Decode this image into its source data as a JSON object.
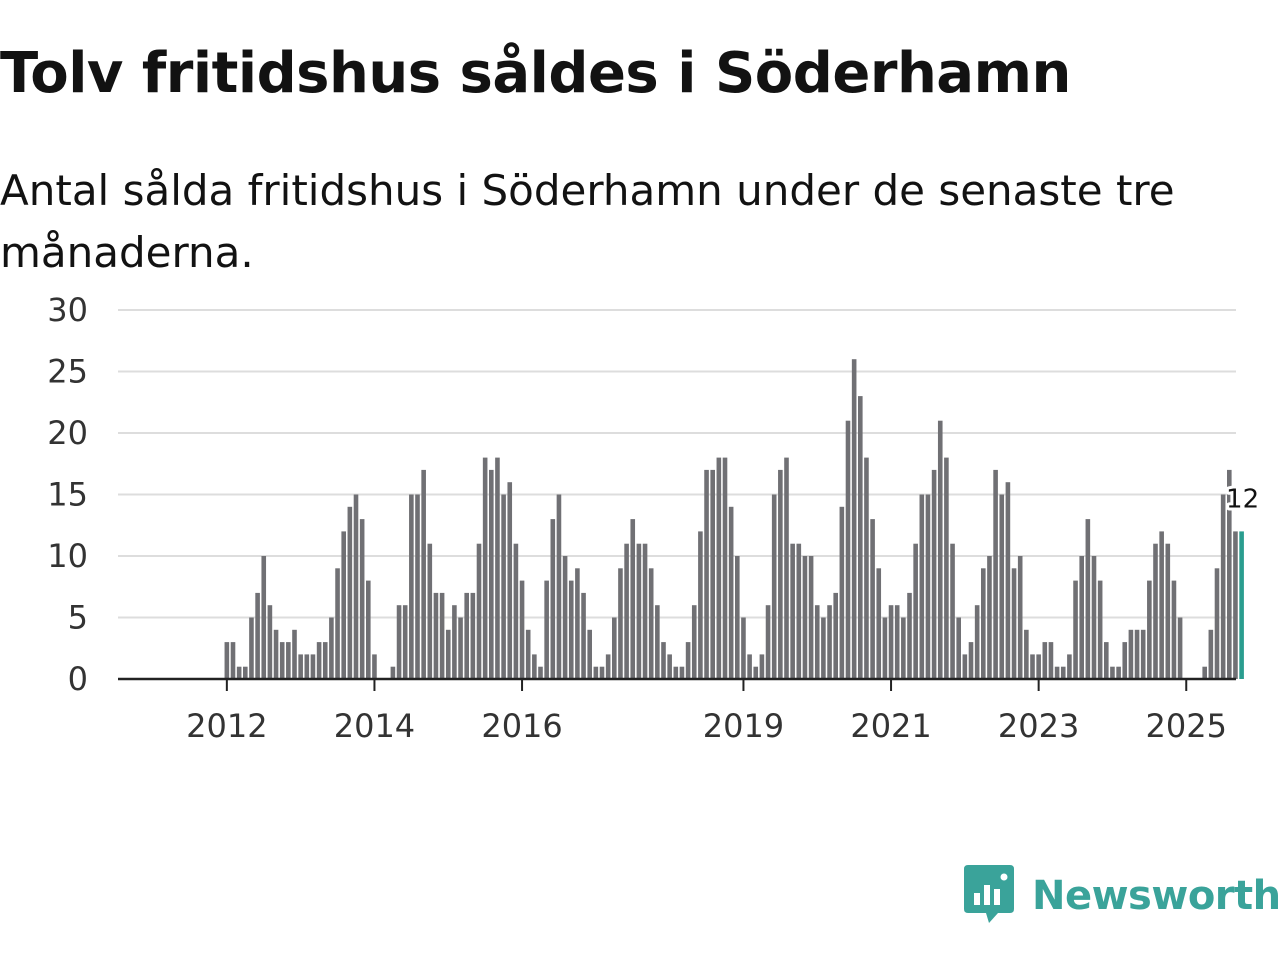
{
  "title": "Tolv fritidshus såldes i Söderhamn",
  "subtitle": "Antal sålda fritidshus i Söderhamn under de senaste tre månaderna.",
  "brand": {
    "name": "Newsworthy",
    "color": "#3aa39a"
  },
  "chart_data": {
    "type": "bar",
    "title": "Tolv fritidshus såldes i Söderhamn",
    "ylabel": "",
    "xlabel": "",
    "ylim": [
      0,
      30
    ],
    "yticks": [
      0,
      5,
      10,
      15,
      20,
      25,
      30
    ],
    "bar_color": "#707074",
    "highlight_color": "#2a9d8f",
    "last_value_label": "12",
    "start": "2011-04",
    "x_ticks": [
      {
        "label": "2012",
        "index": 9
      },
      {
        "label": "2014",
        "index": 33
      },
      {
        "label": "2016",
        "index": 57
      },
      {
        "label": "2019",
        "index": 93
      },
      {
        "label": "2021",
        "index": 117
      },
      {
        "label": "2023",
        "index": 141
      },
      {
        "label": "2025",
        "index": 165
      }
    ],
    "values": [
      0,
      0,
      0,
      0,
      0,
      0,
      0,
      0,
      0,
      3,
      3,
      1,
      1,
      5,
      7,
      10,
      6,
      4,
      3,
      3,
      4,
      2,
      2,
      2,
      3,
      3,
      5,
      9,
      12,
      14,
      15,
      13,
      8,
      2,
      0,
      0,
      1,
      6,
      6,
      15,
      15,
      17,
      11,
      7,
      7,
      4,
      6,
      5,
      7,
      7,
      11,
      18,
      17,
      18,
      15,
      16,
      11,
      8,
      4,
      2,
      1,
      8,
      13,
      15,
      10,
      8,
      9,
      7,
      4,
      1,
      1,
      2,
      5,
      9,
      11,
      13,
      11,
      11,
      9,
      6,
      3,
      2,
      1,
      1,
      3,
      6,
      12,
      17,
      17,
      18,
      18,
      14,
      10,
      5,
      2,
      1,
      2,
      6,
      15,
      17,
      18,
      11,
      11,
      10,
      10,
      6,
      5,
      6,
      7,
      14,
      21,
      26,
      23,
      18,
      13,
      9,
      5,
      6,
      6,
      5,
      7,
      11,
      15,
      15,
      17,
      21,
      18,
      11,
      5,
      2,
      3,
      6,
      9,
      10,
      17,
      15,
      16,
      9,
      10,
      4,
      2,
      2,
      3,
      3,
      1,
      1,
      2,
      8,
      10,
      13,
      10,
      8,
      3,
      1,
      1,
      3,
      4,
      4,
      4,
      8,
      11,
      12,
      11,
      8,
      5,
      0,
      0,
      0,
      1,
      4,
      9,
      15,
      17,
      12,
      12
    ]
  }
}
